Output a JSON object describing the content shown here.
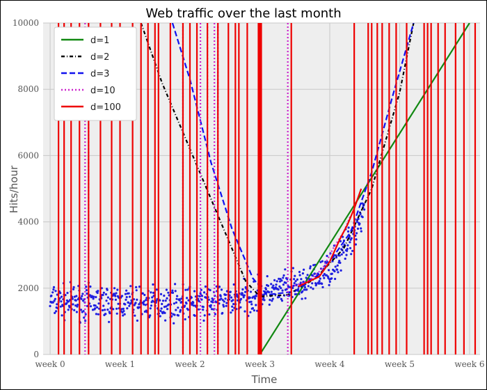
{
  "chart_data": {
    "type": "line",
    "title": "Web traffic over the last month",
    "xlabel": "Time",
    "ylabel": "Hits/hour",
    "xlim": [
      -0.1,
      6.15
    ],
    "ylim": [
      0,
      10000
    ],
    "x_tick_values": [
      0,
      1,
      2,
      3,
      4,
      5,
      6
    ],
    "x_tick_labels": [
      "week 0",
      "week 1",
      "week 2",
      "week 3",
      "week 4",
      "week 5",
      "week 6"
    ],
    "y_ticks": [
      0,
      2000,
      4000,
      6000,
      8000,
      10000
    ],
    "grid": true,
    "legend_position": "upper-left",
    "background": "#eeeeee",
    "scatter": {
      "color": "#1f1fe0",
      "trend": [
        [
          0.0,
          1600
        ],
        [
          0.5,
          1580
        ],
        [
          1.0,
          1570
        ],
        [
          1.5,
          1560
        ],
        [
          2.0,
          1560
        ],
        [
          2.5,
          1620
        ],
        [
          3.0,
          1800
        ],
        [
          3.3,
          1950
        ],
        [
          3.6,
          2100
        ],
        [
          3.9,
          2400
        ],
        [
          4.1,
          2800
        ],
        [
          4.25,
          3300
        ],
        [
          4.4,
          3900
        ],
        [
          4.5,
          4500
        ]
      ],
      "spread": 300
    },
    "series": [
      {
        "name": "d=1",
        "color": "#118811",
        "dash": "",
        "x": [
          3.0,
          6.0
        ],
        "y": [
          0,
          10000
        ]
      },
      {
        "name": "d=2",
        "color": "#000000",
        "dash": "5,3,1,3",
        "x": [
          1.3,
          1.6,
          2.0,
          2.4,
          2.8,
          3.0,
          3.4,
          3.8,
          4.2,
          4.6,
          5.0,
          5.2
        ],
        "y": [
          10000,
          8200,
          6200,
          4200,
          2200,
          1750,
          1800,
          2300,
          3200,
          5000,
          7900,
          10000
        ]
      },
      {
        "name": "d=3",
        "color": "#1010ee",
        "dash": "8,4",
        "x": [
          1.75,
          2.0,
          2.3,
          2.6,
          2.9,
          3.1,
          3.5,
          3.9,
          4.3,
          4.6,
          4.9,
          5.2
        ],
        "y": [
          10000,
          8300,
          5800,
          3800,
          2300,
          1800,
          1900,
          2500,
          3700,
          5500,
          7800,
          10000
        ]
      },
      {
        "name": "d=10",
        "color": "#cc22cc",
        "dash": "2,3",
        "x_vertical": [
          0.5,
          0.55,
          1.9,
          2.15,
          2.25,
          2.35,
          2.4,
          3.4
        ],
        "x_path": [
          3.45,
          3.6,
          3.75,
          3.9,
          4.05,
          4.2,
          4.3
        ],
        "y_path": [
          2050,
          2150,
          2300,
          2600,
          3200,
          3700,
          4200
        ]
      },
      {
        "name": "d=100",
        "color": "#ee0000",
        "dash": "",
        "x_vertical": [
          0.12,
          0.2,
          0.3,
          0.42,
          0.55,
          0.72,
          0.88,
          1.0,
          1.18,
          1.3,
          1.4,
          1.5,
          1.55,
          1.72,
          1.9,
          2.0,
          2.1,
          2.25,
          2.4,
          2.55,
          2.65,
          2.7,
          2.82,
          2.98,
          3.0,
          3.02,
          3.45,
          4.35,
          4.55,
          4.6,
          4.68,
          4.75,
          4.85,
          4.95,
          5.1,
          5.35,
          5.4,
          5.45,
          5.55,
          5.65,
          5.8,
          5.92,
          6.08
        ],
        "x_path": [
          3.55,
          3.7,
          3.85,
          4.0,
          4.15,
          4.25,
          4.35,
          4.45
        ],
        "y_path": [
          2050,
          2200,
          2350,
          2800,
          3500,
          3900,
          4400,
          5000
        ]
      }
    ]
  }
}
